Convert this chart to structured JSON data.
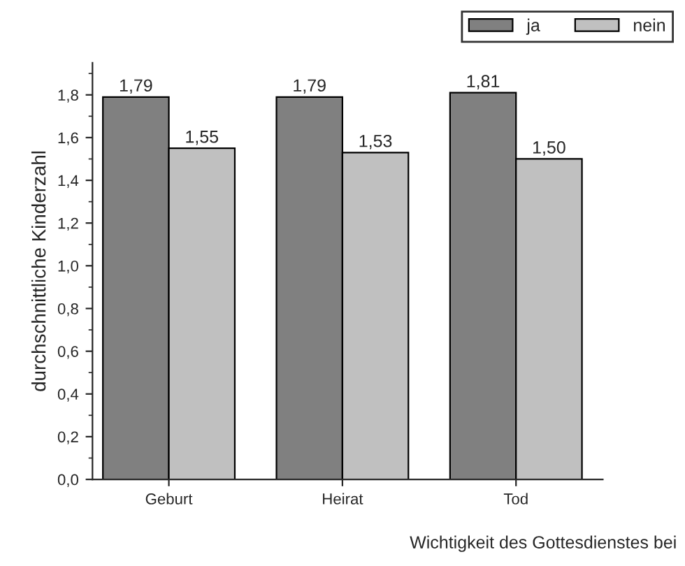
{
  "chart_data": {
    "type": "bar",
    "xlabel": "Wichtigkeit des Gottesdienstes bei",
    "ylabel": "durchschnittliche Kinderzahl",
    "categories": [
      "Geburt",
      "Heirat",
      "Tod"
    ],
    "series": [
      {
        "name": "ja",
        "color": "#808080",
        "values": [
          1.79,
          1.79,
          1.81
        ],
        "value_labels": [
          "1,79",
          "1,79",
          "1,81"
        ]
      },
      {
        "name": "nein",
        "color": "#c0c0c0",
        "values": [
          1.55,
          1.53,
          1.5
        ],
        "value_labels": [
          "1,55",
          "1,53",
          "1,50"
        ]
      }
    ],
    "ylim": [
      0,
      1.95
    ],
    "yticks": [
      {
        "value": 0,
        "label": "0,0"
      },
      {
        "value": 0.1,
        "label": null
      },
      {
        "value": 0.2,
        "label": "0,2"
      },
      {
        "value": 0.3,
        "label": null
      },
      {
        "value": 0.4,
        "label": "0,4"
      },
      {
        "value": 0.5,
        "label": null
      },
      {
        "value": 0.6,
        "label": "0,6"
      },
      {
        "value": 0.7,
        "label": null
      },
      {
        "value": 0.8,
        "label": "0,8"
      },
      {
        "value": 0.9,
        "label": null
      },
      {
        "value": 1.0,
        "label": "1,0"
      },
      {
        "value": 1.1,
        "label": null
      },
      {
        "value": 1.2,
        "label": "1,2"
      },
      {
        "value": 1.3,
        "label": null
      },
      {
        "value": 1.4,
        "label": "1,4"
      },
      {
        "value": 1.5,
        "label": null
      },
      {
        "value": 1.6,
        "label": "1,6"
      },
      {
        "value": 1.7,
        "label": null
      },
      {
        "value": 1.8,
        "label": "1,8"
      },
      {
        "value": 1.9,
        "label": null
      }
    ],
    "grid": false,
    "legend": "top right"
  }
}
